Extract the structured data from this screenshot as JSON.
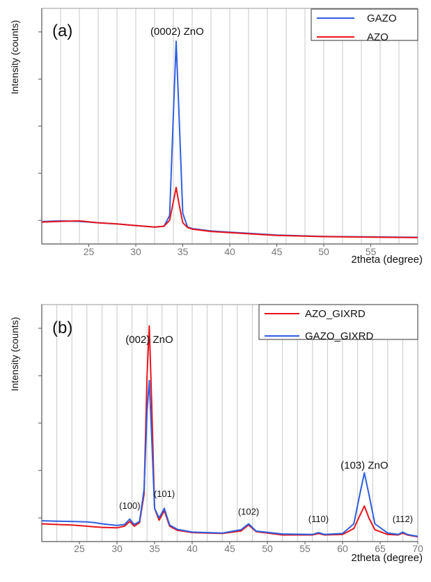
{
  "colors": {
    "red": "#e8141c",
    "blue": "#2f5fe0",
    "grid": "#c8c8c8",
    "axis": "#555555",
    "tick_text": "#777777"
  },
  "chart_data": [
    {
      "type": "line",
      "panel_label": "(a)",
      "xlabel": "2theta (degree)",
      "ylabel": "Intensity (counts)",
      "xlim": [
        20,
        60
      ],
      "ylim": [
        0,
        100
      ],
      "xticks": [
        25,
        30,
        35,
        40,
        45,
        50,
        55
      ],
      "x_gridlines": [
        22,
        24,
        26,
        28,
        30,
        32,
        34,
        36,
        38,
        40,
        42,
        44,
        46,
        48,
        50,
        52,
        54,
        56,
        58
      ],
      "y_minor_ticks": [
        10,
        30,
        50,
        70,
        90
      ],
      "grid": true,
      "legend_position": "top-right",
      "annotations": [
        {
          "text": "(0002) ZnO",
          "x": 34.4,
          "y": 87
        }
      ],
      "series": [
        {
          "name": "GAZO",
          "color": "blue",
          "x": [
            20,
            22,
            24,
            26,
            28,
            30,
            32,
            33,
            33.6,
            34.0,
            34.3,
            34.6,
            35.0,
            35.5,
            36,
            38,
            40,
            45,
            50,
            55,
            60
          ],
          "y": [
            9.5,
            9.8,
            9.6,
            9.0,
            8.5,
            7.8,
            7.2,
            7.5,
            12,
            55,
            86,
            55,
            13,
            7.2,
            6.5,
            5.5,
            5.0,
            3.8,
            3.2,
            3.0,
            2.8
          ]
        },
        {
          "name": "AZO",
          "color": "red",
          "x": [
            20,
            22,
            24,
            26,
            28,
            30,
            32,
            33,
            33.6,
            34.0,
            34.3,
            34.6,
            35.0,
            35.5,
            36,
            38,
            40,
            45,
            50,
            55,
            60
          ],
          "y": [
            9.3,
            9.6,
            9.8,
            9.0,
            8.5,
            7.8,
            7.2,
            7.5,
            10,
            18,
            24,
            17,
            9,
            7.0,
            6.3,
            5.3,
            4.8,
            3.6,
            3.1,
            2.9,
            2.7
          ]
        }
      ]
    },
    {
      "type": "line",
      "panel_label": "(b)",
      "xlabel": "2theta (degree)",
      "ylabel": "Intensity (counts)",
      "xlim": [
        20,
        70
      ],
      "ylim": [
        0,
        100
      ],
      "xticks": [
        25,
        30,
        35,
        40,
        45,
        50,
        55,
        60,
        65,
        70
      ],
      "x_gridlines": [
        22,
        24,
        26,
        28,
        30,
        32,
        34,
        36,
        38,
        40,
        42,
        44,
        46,
        48,
        50,
        52,
        54,
        56,
        58,
        60,
        62,
        64,
        66,
        68
      ],
      "y_minor_ticks": [
        10,
        30,
        50,
        70,
        90
      ],
      "grid": true,
      "legend_position": "top-right",
      "annotations": [
        {
          "text": "(002) ZnO",
          "x": 34.3,
          "y": 82
        },
        {
          "text": "(100)",
          "x": 31.7,
          "y": 12
        },
        {
          "text": "(101)",
          "x": 36.3,
          "y": 17
        },
        {
          "text": "(102)",
          "x": 47.5,
          "y": 9.5
        },
        {
          "text": "(110)",
          "x": 56.8,
          "y": 6.5
        },
        {
          "text": "(103) ZnO",
          "x": 62.9,
          "y": 29
        },
        {
          "text": "(112)",
          "x": 68.0,
          "y": 6.5
        }
      ],
      "series": [
        {
          "name": "AZO_GIXRD",
          "color": "red",
          "x": [
            20,
            22,
            24,
            26,
            27,
            28,
            30,
            31,
            31.7,
            32.3,
            33,
            33.6,
            34.0,
            34.3,
            34.6,
            35.0,
            35.6,
            36.3,
            37,
            38,
            40,
            44,
            46.5,
            47.5,
            48.5,
            52,
            56,
            56.8,
            57.6,
            60,
            61.5,
            62.3,
            62.9,
            63.5,
            64.3,
            66,
            67.4,
            68.0,
            68.6,
            70
          ],
          "y": [
            7.5,
            7.2,
            7.0,
            6.5,
            6.2,
            6.0,
            5.8,
            6.5,
            8.5,
            6.5,
            8,
            20,
            70,
            91,
            60,
            14,
            9,
            13,
            6.5,
            4.8,
            3.8,
            3.4,
            4.5,
            7,
            4.2,
            2.8,
            2.8,
            3.4,
            2.8,
            3.0,
            5.5,
            11,
            15,
            10,
            5.0,
            3.0,
            2.8,
            3.6,
            2.8,
            2.0
          ]
        },
        {
          "name": "GAZO_GIXRD",
          "color": "blue",
          "x": [
            20,
            22,
            24,
            26,
            27,
            28,
            30,
            31,
            31.7,
            32.3,
            33,
            33.6,
            34.0,
            34.3,
            34.6,
            35.0,
            35.6,
            36.3,
            37,
            38,
            40,
            44,
            46.5,
            47.5,
            48.5,
            52,
            56,
            56.8,
            57.6,
            60,
            61.5,
            62.3,
            62.9,
            63.5,
            64.3,
            66,
            67.4,
            68.0,
            68.6,
            70
          ],
          "y": [
            8.8,
            8.6,
            8.5,
            8.3,
            8.0,
            7.5,
            6.8,
            7.2,
            9.5,
            7.2,
            8.5,
            22,
            55,
            68,
            45,
            14,
            10,
            14,
            7,
            5.2,
            4.0,
            3.6,
            5.0,
            7.5,
            4.4,
            3.2,
            3.0,
            3.8,
            3.0,
            3.4,
            7.5,
            20,
            29,
            20,
            7.5,
            3.6,
            3.0,
            4.0,
            3.0,
            2.2
          ]
        }
      ]
    }
  ]
}
